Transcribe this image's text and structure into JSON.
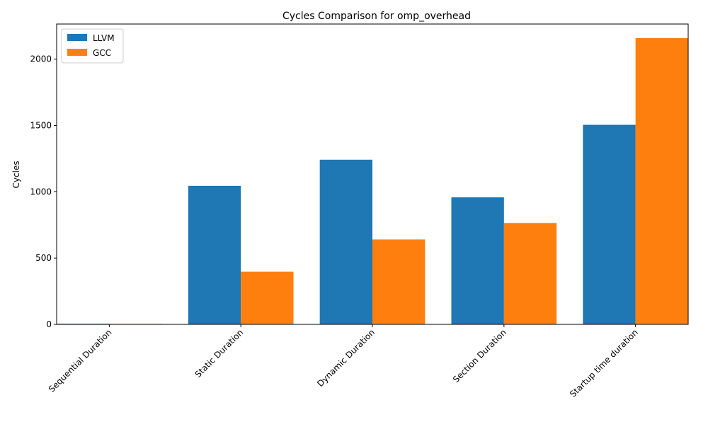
{
  "chart_data": {
    "type": "bar",
    "title": "Cycles Comparison for omp_overhead",
    "xlabel": "",
    "ylabel": "Cycles",
    "categories": [
      "Sequential Duration",
      "Static Duration",
      "Dynamic Duration",
      "Section Duration",
      "Startup time duration"
    ],
    "series": [
      {
        "name": "LLVM",
        "color": "#1f77b4",
        "values": [
          5,
          1045,
          1242,
          958,
          1505
        ]
      },
      {
        "name": "GCC",
        "color": "#ff7f0e",
        "values": [
          4,
          397,
          641,
          764,
          2159
        ]
      }
    ],
    "ylim": [
      0,
      2265
    ],
    "yticks": [
      0,
      500,
      1000,
      1500,
      2000
    ],
    "grid": false,
    "legend": "top-left"
  }
}
